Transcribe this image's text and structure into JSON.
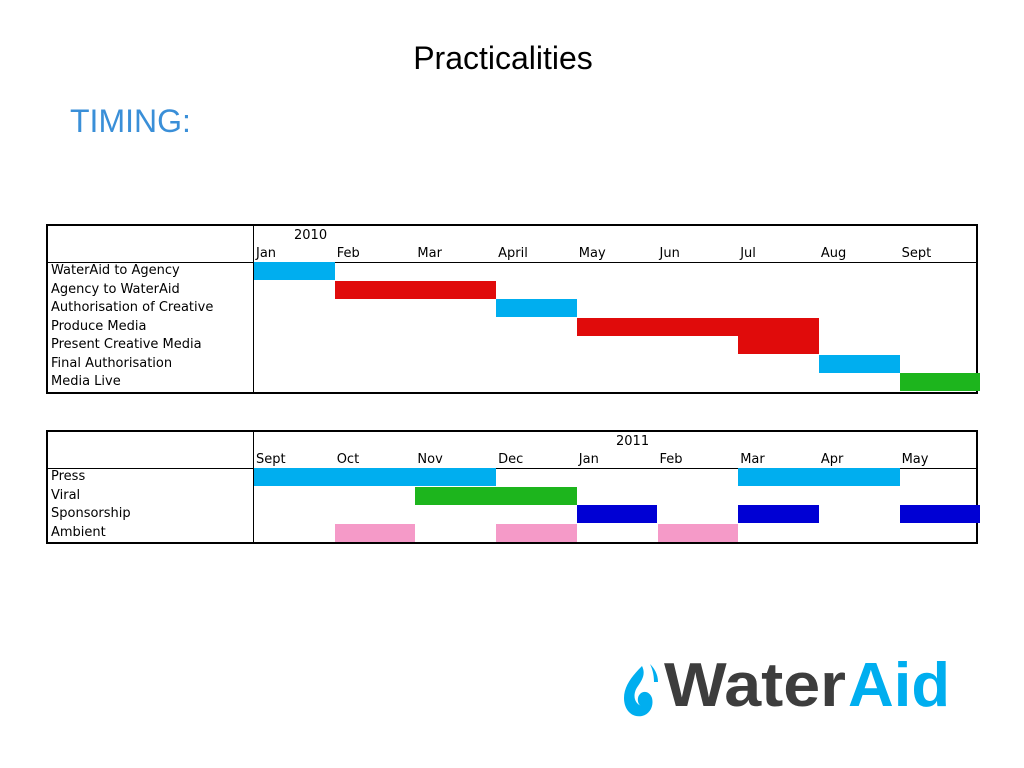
{
  "slide": {
    "title": "Practicalities",
    "subtitle": "TIMING:"
  },
  "colors": {
    "cyan": "#00aeef",
    "red": "#e00b0b",
    "green": "#1db51d",
    "blue": "#0000d4",
    "pink": "#f59ac8"
  },
  "gantt_2010": {
    "year": "2010",
    "months": [
      "Jan",
      "Feb",
      "Mar",
      "April",
      "May",
      "Jun",
      "Jul",
      "Aug",
      "Sept"
    ],
    "tasks": [
      {
        "label": "WaterAid to Agency",
        "start": 0,
        "end": 1,
        "color": "cyan"
      },
      {
        "label": "Agency to WaterAid",
        "start": 1,
        "end": 3,
        "color": "red"
      },
      {
        "label": "Authorisation of Creative",
        "start": 3,
        "end": 4,
        "color": "cyan"
      },
      {
        "label": "Produce Media",
        "start": 4,
        "end": 7,
        "color": "red"
      },
      {
        "label": "Present Creative Media",
        "start": 6,
        "end": 7,
        "color": "red"
      },
      {
        "label": "Final Authorisation",
        "start": 7,
        "end": 8,
        "color": "cyan"
      },
      {
        "label": "Media Live",
        "start": 8,
        "end": 9,
        "color": "green"
      }
    ]
  },
  "gantt_2011": {
    "year": "2011",
    "months": [
      "Sept",
      "Oct",
      "Nov",
      "Dec",
      "Jan",
      "Feb",
      "Mar",
      "Apr",
      "May"
    ],
    "tasks": [
      {
        "label": "Press",
        "segments": [
          [
            0,
            3,
            "cyan"
          ],
          [
            6,
            8,
            "cyan"
          ]
        ]
      },
      {
        "label": "Viral",
        "segments": [
          [
            2,
            4,
            "green"
          ]
        ]
      },
      {
        "label": "Sponsorship",
        "segments": [
          [
            4,
            5,
            "blue"
          ],
          [
            6,
            7,
            "blue"
          ],
          [
            8,
            9,
            "blue"
          ]
        ]
      },
      {
        "label": "Ambient",
        "segments": [
          [
            1,
            2,
            "pink"
          ],
          [
            3,
            4,
            "pink"
          ],
          [
            5,
            6,
            "pink"
          ]
        ]
      }
    ]
  },
  "logo": {
    "word_dark": "Water",
    "word_blue": "Aid",
    "dark_color": "#3d3d3d",
    "blue_color": "#00aeef"
  }
}
